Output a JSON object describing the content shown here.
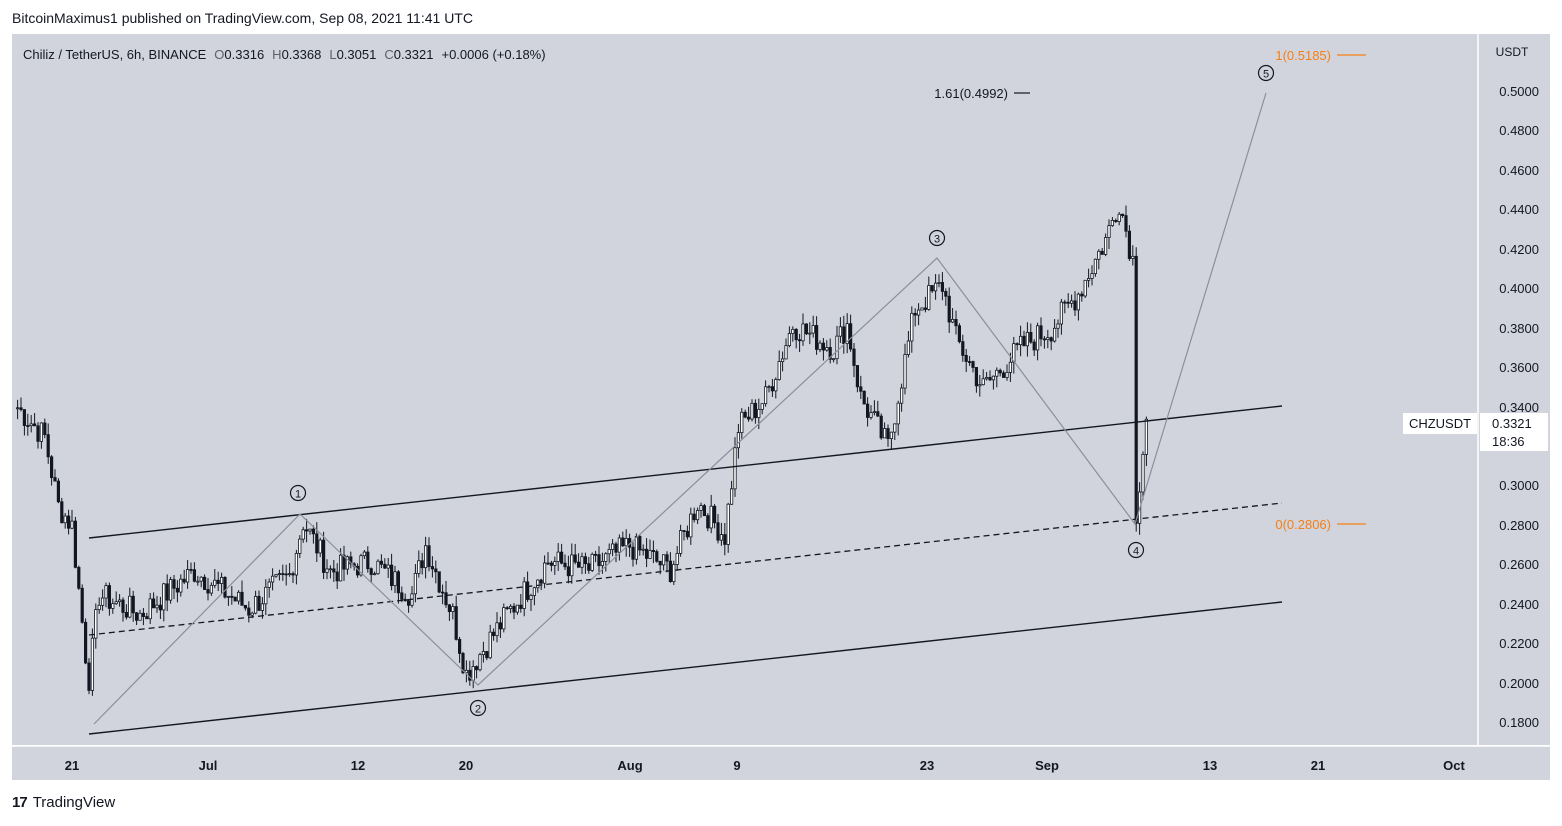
{
  "header": {
    "published_line": "BitcoinMaximus1 published on TradingView.com, Sep 08, 2021 11:41 UTC"
  },
  "legend": {
    "symbol": "Chiliz / TetherUS, 6h, BINANCE",
    "o_label": "O",
    "o_value": "0.3316",
    "h_label": "H",
    "h_value": "0.3368",
    "l_label": "L",
    "l_value": "0.3051",
    "c_label": "C",
    "c_value": "0.3321",
    "change": "+0.0006 (+0.18%)"
  },
  "price_axis": {
    "unit_label": "USDT",
    "tick_labels": [
      "0.5000",
      "0.4800",
      "0.4600",
      "0.4400",
      "0.4200",
      "0.4000",
      "0.3800",
      "0.3600",
      "0.3400",
      "0.3200",
      "0.3000",
      "0.2800",
      "0.2600",
      "0.2400",
      "0.2200",
      "0.2000",
      "0.1800"
    ],
    "tag_symbol": "CHZUSDT",
    "tag_price": "0.3321",
    "tag_countdown": "18:36"
  },
  "time_axis": {
    "tick_labels": [
      "21",
      "Jul",
      "12",
      "20",
      "Aug",
      "9",
      "23",
      "Sep",
      "13",
      "21",
      "Oct"
    ]
  },
  "annotations": {
    "fib_161": "1.61(0.4992)",
    "fib_1": "1(0.5185)",
    "fib_0": "0(0.2806)",
    "wave_1": "1",
    "wave_2": "2",
    "wave_3": "3",
    "wave_4": "4",
    "wave_5": "5"
  },
  "footer": {
    "brand": "TradingView",
    "logo_mark": "17"
  },
  "colors": {
    "plot_bg": "#d1d4dc",
    "candle": "#131722",
    "fib_orange": "#f57f17",
    "wave_path": "#8c8f9a"
  },
  "chart_data": {
    "type": "candlestick",
    "title": "Chiliz / TetherUS, 6h, BINANCE",
    "ylabel": "USDT",
    "ylim": [
      0.165,
      0.525
    ],
    "y_ticks": [
      0.5,
      0.48,
      0.46,
      0.44,
      0.42,
      0.4,
      0.38,
      0.36,
      0.34,
      0.32,
      0.3,
      0.28,
      0.26,
      0.24,
      0.22,
      0.2,
      0.18
    ],
    "x_ticks": [
      "21",
      "Jul",
      "12",
      "20",
      "Aug",
      "9",
      "23",
      "Sep",
      "13",
      "21",
      "Oct"
    ],
    "price_path": [
      [
        "Jun 17",
        0.34
      ],
      [
        "Jun 19",
        0.325
      ],
      [
        "Jun 20",
        0.29
      ],
      [
        "Jun 21",
        0.28
      ],
      [
        "Jun 22",
        0.215
      ],
      [
        "Jun 22",
        0.195
      ],
      [
        "Jun 23",
        0.245
      ],
      [
        "Jun 26",
        0.235
      ],
      [
        "Jun 30",
        0.257
      ],
      [
        "Jul 4",
        0.238
      ],
      [
        "Jul 7",
        0.255
      ],
      [
        "Jul 8",
        0.282
      ],
      [
        "Jul 10",
        0.257
      ],
      [
        "Jul 13",
        0.262
      ],
      [
        "Jul 16",
        0.245
      ],
      [
        "Jul 17",
        0.27
      ],
      [
        "Jul 19",
        0.235
      ],
      [
        "Jul 20",
        0.205
      ],
      [
        "Jul 21",
        0.215
      ],
      [
        "Jul 23",
        0.235
      ],
      [
        "Jul 26",
        0.262
      ],
      [
        "Jul 29",
        0.258
      ],
      [
        "Aug 1",
        0.27
      ],
      [
        "Aug 4",
        0.258
      ],
      [
        "Aug 6",
        0.292
      ],
      [
        "Aug 8",
        0.275
      ],
      [
        "Aug 9",
        0.33
      ],
      [
        "Aug 11",
        0.345
      ],
      [
        "Aug 13",
        0.382
      ],
      [
        "Aug 16",
        0.37
      ],
      [
        "Aug 17",
        0.382
      ],
      [
        "Aug 18",
        0.345
      ],
      [
        "Aug 20",
        0.32
      ],
      [
        "Aug 22",
        0.39
      ],
      [
        "Aug 24",
        0.402
      ],
      [
        "Aug 25",
        0.375
      ],
      [
        "Aug 27",
        0.35
      ],
      [
        "Aug 30",
        0.372
      ],
      [
        "Sep 1",
        0.38
      ],
      [
        "Sep 3",
        0.398
      ],
      [
        "Sep 5",
        0.425
      ],
      [
        "Sep 6",
        0.445
      ],
      [
        "Sep 7",
        0.415
      ],
      [
        "Sep 7",
        0.345
      ],
      [
        "Sep 7",
        0.285
      ],
      [
        "Sep 8",
        0.335
      ],
      [
        "Sep 8",
        0.3321
      ]
    ],
    "annotations": {
      "channel_upper": [
        [
          "Jun 22",
          0.274
        ],
        [
          "Sep 19",
          0.341
        ]
      ],
      "channel_mid_dashed": [
        [
          "Jun 22",
          0.225
        ],
        [
          "Sep 19",
          0.291
        ]
      ],
      "channel_lower": [
        [
          "Jun 22",
          0.175
        ],
        [
          "Sep 19",
          0.242
        ]
      ],
      "wave_points": [
        [
          "Jun 22",
          0.18
        ],
        [
          "Jul 8",
          0.285
        ],
        [
          "Jul 20",
          0.2
        ],
        [
          "Aug 23",
          0.416
        ],
        [
          "Sep 7",
          0.28
        ],
        [
          "Sep 18",
          0.499
        ]
      ],
      "fib_levels": [
        {
          "label": "1.61(0.4992)",
          "value": 0.4992
        },
        {
          "label": "1(0.5185)",
          "value": 0.5185
        },
        {
          "label": "0(0.2806)",
          "value": 0.2806
        }
      ]
    },
    "grid": false,
    "last_price": 0.3321
  }
}
